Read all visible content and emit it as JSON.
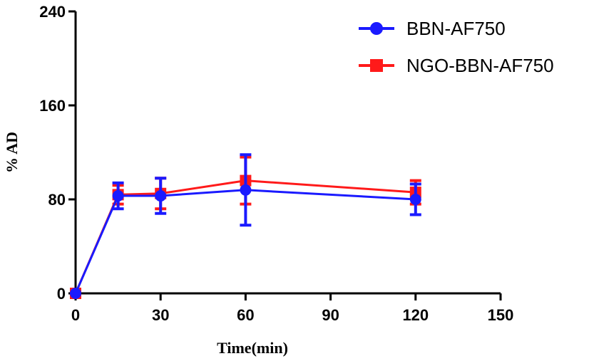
{
  "chart_data": {
    "type": "line",
    "title": "",
    "xlabel": "Time(min)",
    "ylabel": "% AD",
    "xlim": [
      0,
      150
    ],
    "ylim": [
      0,
      240
    ],
    "xticks": [
      0,
      30,
      60,
      90,
      120,
      150
    ],
    "yticks": [
      0,
      80,
      160,
      240
    ],
    "grid": false,
    "legend_position": "top-right",
    "x": [
      0,
      15,
      30,
      60,
      120
    ],
    "series": [
      {
        "name": "BBN-AF750",
        "color": "#1a1aff",
        "marker": "circle",
        "values": [
          0,
          83,
          83,
          88,
          80
        ],
        "errors": [
          0,
          11,
          15,
          30,
          13
        ]
      },
      {
        "name": "NGO-BBN-AF750",
        "color": "#ff1a1a",
        "marker": "square",
        "values": [
          0,
          84,
          85,
          96,
          86
        ],
        "errors": [
          0,
          8,
          13,
          20,
          10
        ]
      }
    ]
  }
}
